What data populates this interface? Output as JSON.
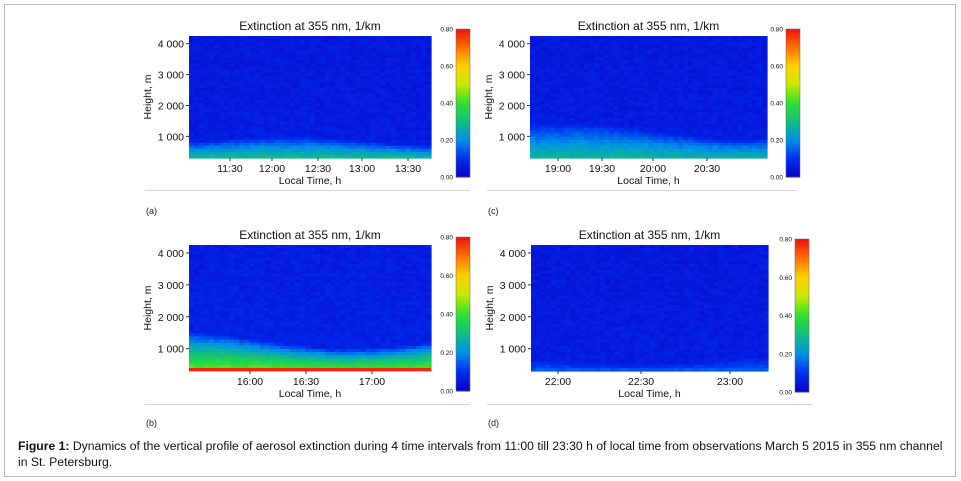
{
  "figure": {
    "caption_label": "Figure 1:",
    "caption_text": " Dynamics of the vertical profile of aerosol extinction during 4 time intervals from 11:00 till 23:30 h of local time from observations March 5 2015 in 355 nm channel in St. Petersburg."
  },
  "colors": {
    "colormap": [
      "#0a00c8",
      "#0030f0",
      "#0090e8",
      "#10c080",
      "#30e030",
      "#c8e800",
      "#ffd000",
      "#ff7000",
      "#f01010"
    ]
  },
  "chart_data": [
    {
      "type": "heatmap",
      "panel": "(a)",
      "title": "Extinction at 355 nm, 1/km",
      "xlabel": "Local Time, h",
      "ylabel": "Height, m",
      "x_ticks": [
        "11:30",
        "12:00",
        "12:30",
        "13:00",
        "13:30"
      ],
      "y_ticks": [
        "1 000",
        "2 000",
        "3 000",
        "4 000"
      ],
      "ylim": [
        300,
        4250
      ],
      "colorbar_ticks": [
        "0.00",
        "0.20",
        "0.40",
        "0.60",
        "0.80"
      ],
      "colorbar_range": [
        0,
        0.8
      ],
      "profile": {
        "surface_value": 0.3,
        "layer_top_m": 900,
        "background_value": 0.06
      }
    },
    {
      "type": "heatmap",
      "panel": "(c)",
      "title": "Extinction at 355 nm, 1/km",
      "xlabel": "Local Time, h",
      "ylabel": "Height, m",
      "x_ticks": [
        "19:00",
        "19:30",
        "20:00",
        "20:30"
      ],
      "y_ticks": [
        "1 000",
        "2 000",
        "3 000",
        "4 000"
      ],
      "ylim": [
        300,
        4250
      ],
      "colorbar_ticks": [
        "0.00",
        "0.20",
        "0.40",
        "0.60",
        "0.80"
      ],
      "colorbar_range": [
        0,
        0.8
      ],
      "profile": {
        "surface_value": 0.28,
        "layer_top_m": 1300,
        "background_value": 0.06
      }
    },
    {
      "type": "heatmap",
      "panel": "(b)",
      "title": "Extinction at 355 nm, 1/km",
      "xlabel": "Local Time, h",
      "ylabel": "Height, m",
      "x_ticks": [
        "16:00",
        "16:30",
        "17:00"
      ],
      "y_ticks": [
        "1 000",
        "2 000",
        "3 000",
        "4 000"
      ],
      "ylim": [
        300,
        4250
      ],
      "colorbar_ticks": [
        "0.00",
        "0.20",
        "0.40",
        "0.60",
        "0.80"
      ],
      "colorbar_range": [
        0,
        0.8
      ],
      "profile": {
        "surface_value": 0.45,
        "layer_top_m": 1400,
        "background_value": 0.07
      }
    },
    {
      "type": "heatmap",
      "panel": "(d)",
      "title": "Extinction at 355 nm, 1/km",
      "xlabel": "Local Time, h",
      "ylabel": "Height, m",
      "x_ticks": [
        "22:00",
        "22:30",
        "23:00"
      ],
      "y_ticks": [
        "1 000",
        "2 000",
        "3 000",
        "4 000"
      ],
      "ylim": [
        300,
        4250
      ],
      "colorbar_ticks": [
        "0.00",
        "0.20",
        "0.40",
        "0.60",
        "0.80"
      ],
      "colorbar_range": [
        0,
        0.8
      ],
      "profile": {
        "surface_value": 0.15,
        "layer_top_m": 700,
        "background_value": 0.06
      }
    }
  ]
}
